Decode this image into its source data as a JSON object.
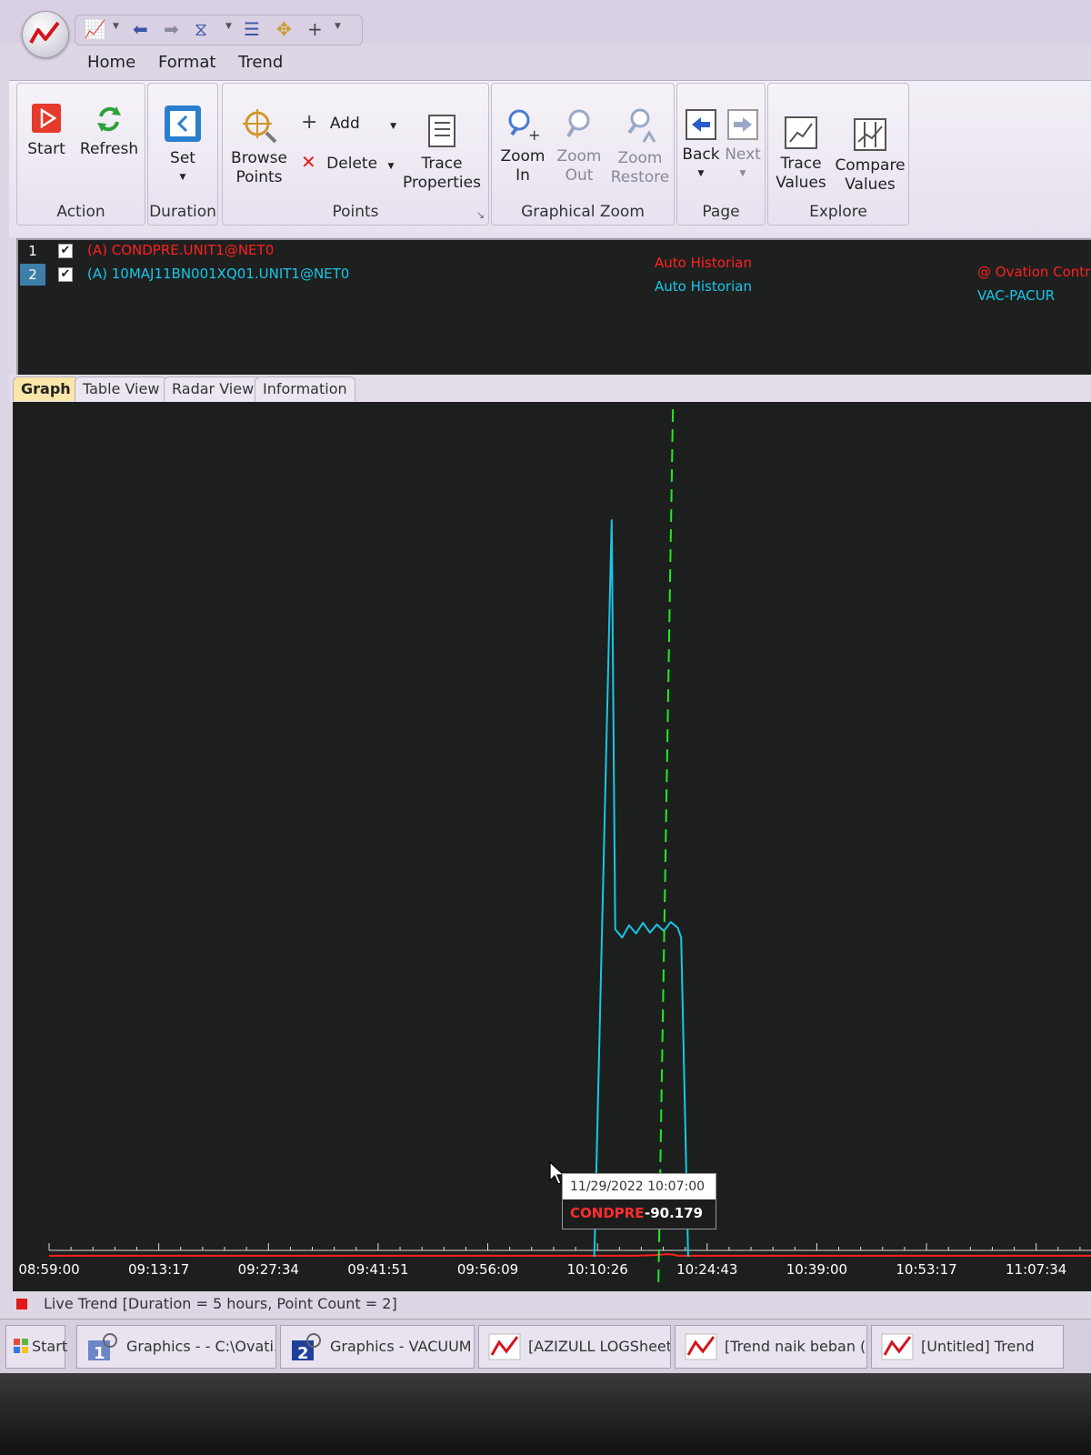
{
  "ribbon_tabs": [
    "Home",
    "Format",
    "Trend"
  ],
  "ribbon": {
    "action": {
      "label": "Action",
      "start": "Start",
      "refresh": "Refresh"
    },
    "duration": {
      "label": "Duration",
      "set": "Set"
    },
    "points": {
      "label": "Points",
      "browse": "Browse Points",
      "add": "Add",
      "delete": "Delete",
      "trace_properties": "Trace Properties"
    },
    "graphical_zoom": {
      "label": "Graphical Zoom",
      "zoom_in": "Zoom In",
      "zoom_out": "Zoom Out",
      "zoom_restore": "Zoom Restore"
    },
    "page": {
      "label": "Page",
      "back": "Back",
      "next": "Next"
    },
    "explore": {
      "label": "Explore",
      "trace_values": "Trace Values",
      "compare_values": "Compare Values"
    }
  },
  "points": [
    {
      "num": "1",
      "checked": true,
      "name": "(A) CONDPRE.UNIT1@NET0",
      "source": "Auto Historian",
      "description": "@ Ovation Contro",
      "color": "#ff2020"
    },
    {
      "num": "2",
      "checked": true,
      "name": "(A) 10MAJ11BN001XQ01.UNIT1@NET0",
      "source": "Auto Historian",
      "description": "VAC-PACUR",
      "color": "#19c6e8"
    }
  ],
  "view_tabs": [
    "Graph",
    "Table View",
    "Radar View",
    "Information"
  ],
  "chart_data": {
    "type": "line",
    "x_ticks": [
      "08:59:00",
      "09:13:17",
      "09:27:34",
      "09:41:51",
      "09:56:09",
      "10:10:26",
      "10:24:43",
      "10:39:00",
      "10:53:17",
      "11:07:34"
    ],
    "x_range_minutes": [
      0,
      300
    ],
    "series": [
      {
        "name": "CONDPRE",
        "color": "#ff2020",
        "points": [
          [
            0,
            0.12
          ],
          [
            60,
            0.12
          ],
          [
            120,
            0.12
          ],
          [
            168,
            0.12
          ],
          [
            174,
            0.2
          ],
          [
            178,
            0.32
          ],
          [
            180,
            0.26
          ],
          [
            181,
            0.12
          ],
          [
            240,
            0.12
          ],
          [
            300,
            0.12
          ]
        ]
      },
      {
        "name": "10MAJ11BN001XQ01",
        "color": "#19c6e8",
        "points": [
          [
            157,
            0
          ],
          [
            162,
            90
          ],
          [
            163,
            40
          ],
          [
            165,
            39
          ],
          [
            167,
            40.5
          ],
          [
            169,
            39.5
          ],
          [
            171,
            40.8
          ],
          [
            173,
            39.6
          ],
          [
            175,
            40.6
          ],
          [
            177,
            39.8
          ],
          [
            179,
            40.9
          ],
          [
            181,
            40.2
          ],
          [
            182,
            39
          ],
          [
            184,
            0
          ]
        ]
      }
    ],
    "y_range": [
      0,
      100
    ],
    "cursor_minute": 177
  },
  "tooltip": {
    "time": "11/29/2022 10:07:00",
    "point": "CONDPRE",
    "value": "-90.179"
  },
  "status": {
    "text": "Live Trend [Duration = 5 hours, Point Count = 2]"
  },
  "taskbar": {
    "start": "Start",
    "items": [
      "Graphics -  - C:\\Ovati...",
      "Graphics - VACUUM S...",
      "[AZIZULL LOGSheet ...",
      "[Trend naik beban (a...",
      "[Untitled] Trend"
    ]
  },
  "colors": {
    "graph_bg": "#1c1f1d",
    "cursor": "#22e822",
    "axis": "#dddddd"
  }
}
